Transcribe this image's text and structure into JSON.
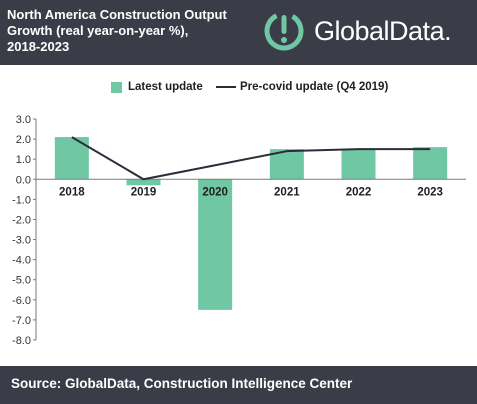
{
  "header": {
    "title_lines": [
      "North America Construction Output",
      "Growth (real year-on-year %),",
      "2018-2023"
    ],
    "brand_name": "GlobalData."
  },
  "legend": {
    "bar_label": "Latest update",
    "line_label": "Pre-covid update (Q4 2019)"
  },
  "footer": {
    "source": "Source: GlobalData, Construction Intelligence Center"
  },
  "colors": {
    "header_bg": "#3a3d48",
    "bar": "#6fc7a3",
    "line": "#2b2d3a",
    "brand_icon": "#6fc7a3"
  },
  "chart_data": {
    "type": "bar",
    "categories": [
      "2018",
      "2019",
      "2020",
      "2021",
      "2022",
      "2023"
    ],
    "series": [
      {
        "name": "Latest update",
        "type": "bar",
        "values": [
          2.1,
          -0.3,
          -6.5,
          1.5,
          1.5,
          1.6
        ]
      },
      {
        "name": "Pre-covid update (Q4 2019)",
        "type": "line",
        "values": [
          2.1,
          0.0,
          0.7,
          1.4,
          1.5,
          1.5
        ]
      }
    ],
    "ylim": [
      -8.0,
      3.0
    ],
    "yticks": [
      "3.0",
      "2.0",
      "1.0",
      "0.0",
      "-1.0",
      "-2.0",
      "-3.0",
      "-4.0",
      "-5.0",
      "-6.0",
      "-7.0",
      "-8.0"
    ],
    "grid": false,
    "legend_position": "top"
  }
}
